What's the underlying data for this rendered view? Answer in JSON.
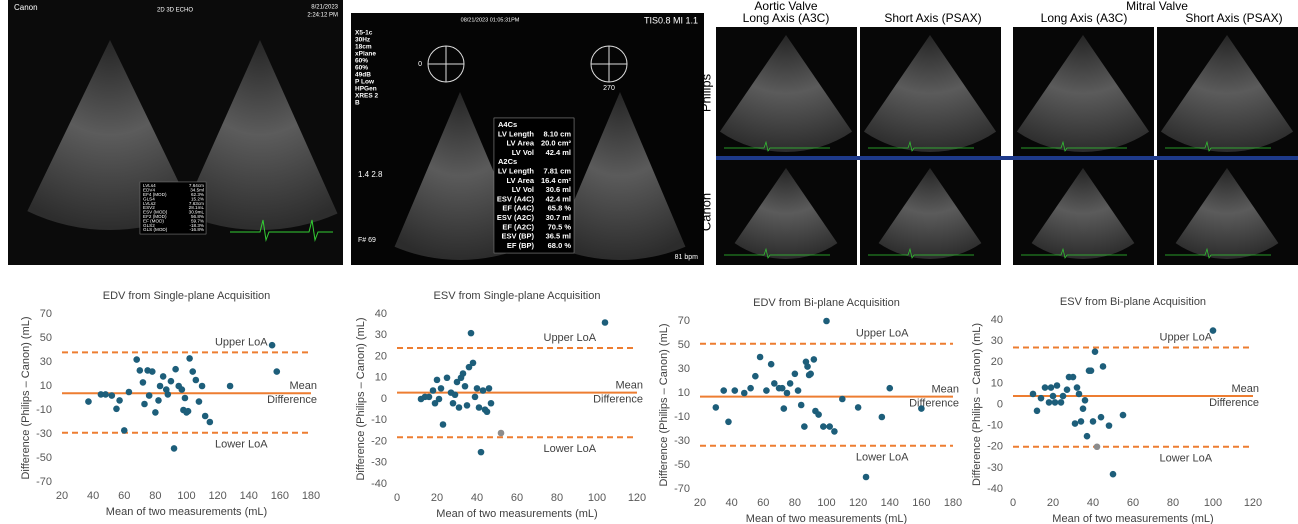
{
  "image_a": {
    "brand": "Canon",
    "mode": "2D 3D ECHO",
    "date": "8/21/2023",
    "time": "2:24:12 PM",
    "measurements": [
      [
        "LVLs4",
        "7.64cm"
      ],
      [
        "EDV4",
        "34.5ml"
      ],
      [
        "EF4 (MOD)",
        "62.3%"
      ],
      [
        "GLS4",
        "15.2%"
      ],
      [
        "LVLs2",
        "7.63cm"
      ],
      [
        "ESV2",
        "28.1mL"
      ],
      [
        "ESV (MOD)",
        "30.9mL"
      ],
      [
        "EF2 (MOD)",
        "56.8%"
      ],
      [
        "EF (MOD)",
        "59.7%"
      ],
      [
        "GLS2",
        "-18.3%"
      ],
      [
        "GLS (MOD)",
        "-16.8%"
      ]
    ]
  },
  "image_b": {
    "datetime": "08/21/2023  01:05:31PM",
    "tis": "TIS0.8   MI 1.1",
    "settings": [
      "X5-1c",
      "30Hz",
      "18cm",
      "xPlane",
      "60%",
      "60%",
      "49dB",
      "P Low",
      "HPGen",
      "XRES 2",
      "B"
    ],
    "angles": [
      "0",
      "270"
    ],
    "scale": "1.4  2.8",
    "frame": "F# 69",
    "heart_rate": "81 bpm",
    "table": [
      [
        "A4Cs"
      ],
      [
        "LV Length",
        "8.10 cm"
      ],
      [
        "LV Area",
        "20.0 cm²"
      ],
      [
        "LV Vol",
        "42.4 ml"
      ],
      [
        "A2Cs"
      ],
      [
        "LV Length",
        "7.81 cm"
      ],
      [
        "LV Area",
        "16.4 cm²"
      ],
      [
        "LV Vol",
        "30.6 ml"
      ],
      [
        "ESV (A4C)",
        "42.4 ml"
      ],
      [
        "EF (A4C)",
        "65.8 %"
      ],
      [
        "ESV (A2C)",
        "30.7 ml"
      ],
      [
        "EF (A2C)",
        "70.5 %"
      ],
      [
        "ESV (BP)",
        "36.5 ml"
      ],
      [
        "EF (BP)",
        "68.0 %"
      ]
    ]
  },
  "image_c": {
    "valves": [
      "Aortic Valve",
      "Mitral Valve"
    ],
    "views": [
      "Long Axis (A3C)",
      "Short Axis (PSAX)",
      "Long Axis (A3C)",
      "Short Axis (PSAX)"
    ],
    "vendors": [
      "Philips",
      "Canon"
    ]
  },
  "chart_data": [
    {
      "type": "scatter",
      "title": "EDV from Single-plane Acquisition",
      "x_label": "Mean of two measurements (mL)",
      "y_label": "Difference (Philips – Canon) (mL)",
      "xlim": [
        20,
        180
      ],
      "xticks": [
        20,
        40,
        60,
        80,
        100,
        120,
        140,
        160,
        180
      ],
      "ylim": [
        -70,
        70
      ],
      "yticks": [
        -70,
        -50,
        -30,
        -10,
        10,
        30,
        50,
        70
      ],
      "series": [
        {
          "color": "#1d5e7a",
          "x": [
            37,
            45,
            48,
            52,
            55,
            57,
            60,
            63,
            68,
            70,
            72,
            73,
            75,
            76,
            78,
            80,
            82,
            83,
            85,
            87,
            88,
            90,
            92,
            93,
            95,
            97,
            98,
            99,
            100,
            101,
            102,
            104,
            106,
            108,
            110,
            112,
            115,
            128,
            155,
            158
          ],
          "values": [
            -3,
            3,
            3,
            2,
            -9,
            -2,
            -27,
            5,
            32,
            23,
            13,
            -5,
            23,
            2,
            22,
            -12,
            -2,
            10,
            18,
            7,
            3,
            14,
            -42,
            24,
            10,
            7,
            -10,
            0,
            -12,
            -11,
            33,
            22,
            15,
            -3,
            10,
            -15,
            -20,
            10,
            44,
            22
          ]
        }
      ],
      "reference_lines": [
        {
          "label": [
            "Upper LoA"
          ],
          "value": 38,
          "dashed": true
        },
        {
          "label": [
            "Mean",
            "Difference"
          ],
          "value": 4,
          "dashed": false
        },
        {
          "label": [
            "Lower LoA"
          ],
          "value": -29,
          "dashed": true
        }
      ],
      "line_color": "#ed7d31"
    },
    {
      "type": "scatter",
      "title": "ESV from Single-plane Acquisition",
      "x_label": "Mean of two measurements (mL)",
      "y_label": "Difference (Philips – Canon) (mL)",
      "xlim": [
        0,
        120
      ],
      "xticks": [
        0,
        20,
        40,
        60,
        80,
        100,
        120
      ],
      "ylim": [
        -40,
        40
      ],
      "yticks": [
        -40,
        -30,
        -20,
        -10,
        0,
        10,
        20,
        30,
        40
      ],
      "series": [
        {
          "color": "#1d5e7a",
          "x": [
            12,
            14,
            16,
            18,
            19,
            20,
            21,
            22,
            23,
            25,
            27,
            28,
            29,
            30,
            31,
            32,
            33,
            34,
            35,
            36,
            37,
            38,
            39,
            40,
            41,
            42,
            43,
            44,
            45,
            46,
            47,
            104
          ],
          "values": [
            0,
            1,
            1,
            4,
            -2,
            9,
            0,
            5,
            -12,
            10,
            3,
            -2,
            2,
            8,
            -4,
            10,
            12,
            6,
            -3,
            15,
            31,
            17,
            1,
            5,
            -4,
            -25,
            4,
            -5,
            -6,
            5,
            -2,
            36
          ]
        },
        {
          "color": "#8c8c8c",
          "x": [
            52
          ],
          "values": [
            -16
          ]
        }
      ],
      "reference_lines": [
        {
          "label": [
            "Upper LoA"
          ],
          "value": 24,
          "dashed": true
        },
        {
          "label": [
            "Mean",
            "Difference"
          ],
          "value": 3,
          "dashed": false
        },
        {
          "label": [
            "Lower LoA"
          ],
          "value": -18,
          "dashed": true
        }
      ],
      "line_color": "#ed7d31"
    },
    {
      "type": "scatter",
      "title": "EDV from Bi-plane Acquisition",
      "x_label": "Mean of two measurements (mL)",
      "y_label": "Difference (Philips – Canon) (mL)",
      "xlim": [
        20,
        180
      ],
      "xticks": [
        20,
        40,
        60,
        80,
        100,
        120,
        140,
        160,
        180
      ],
      "ylim": [
        -70,
        70
      ],
      "yticks": [
        -70,
        -50,
        -30,
        -10,
        10,
        30,
        50,
        70
      ],
      "series": [
        {
          "color": "#1d5e7a",
          "x": [
            30,
            35,
            38,
            42,
            48,
            52,
            55,
            58,
            62,
            65,
            67,
            70,
            72,
            73,
            75,
            77,
            80,
            82,
            84,
            86,
            87,
            88,
            89,
            90,
            92,
            93,
            95,
            98,
            100,
            102,
            105,
            110,
            120,
            125,
            135,
            140,
            160
          ],
          "values": [
            -2,
            12,
            -14,
            12,
            10,
            14,
            24,
            40,
            12,
            34,
            18,
            14,
            14,
            -3,
            10,
            18,
            26,
            12,
            0,
            -18,
            36,
            32,
            25,
            26,
            38,
            -5,
            -8,
            -18,
            70,
            -18,
            -22,
            5,
            -2,
            -60,
            -10,
            14,
            -3
          ]
        }
      ],
      "reference_lines": [
        {
          "label": [
            "Upper LoA"
          ],
          "value": 51,
          "dashed": true
        },
        {
          "label": [
            "Mean",
            "Difference"
          ],
          "value": 7,
          "dashed": false
        },
        {
          "label": [
            "Lower LoA"
          ],
          "value": -34,
          "dashed": true
        }
      ],
      "line_color": "#ed7d31"
    },
    {
      "type": "scatter",
      "title": "ESV from Bi-plane Acquisition",
      "x_label": "Mean of two measurements (mL)",
      "y_label": "Difference (Philips – Canon) (mL)",
      "xlim": [
        0,
        120
      ],
      "xticks": [
        0,
        20,
        40,
        60,
        80,
        100,
        120
      ],
      "ylim": [
        -40,
        40
      ],
      "yticks": [
        -40,
        -30,
        -20,
        -10,
        0,
        10,
        20,
        30,
        40
      ],
      "series": [
        {
          "color": "#1d5e7a",
          "x": [
            10,
            12,
            14,
            16,
            18,
            19,
            20,
            21,
            22,
            24,
            25,
            27,
            28,
            30,
            31,
            32,
            33,
            34,
            35,
            36,
            37,
            38,
            39,
            40,
            41,
            44,
            45,
            48,
            50,
            55,
            100
          ],
          "values": [
            5,
            -3,
            3,
            8,
            1,
            8,
            4,
            1,
            9,
            1,
            4,
            7,
            13,
            13,
            -9,
            8,
            5,
            -8,
            -2,
            2,
            -15,
            16,
            16,
            -8,
            25,
            -6,
            18,
            -10,
            -33,
            -5,
            35
          ]
        },
        {
          "color": "#8c8c8c",
          "x": [
            42
          ],
          "values": [
            -20
          ]
        }
      ],
      "reference_lines": [
        {
          "label": [
            "Upper LoA"
          ],
          "value": 27,
          "dashed": true
        },
        {
          "label": [
            "Mean",
            "Difference"
          ],
          "value": 4,
          "dashed": false
        },
        {
          "label": [
            "Lower LoA"
          ],
          "value": -20,
          "dashed": true
        }
      ],
      "line_color": "#ed7d31"
    }
  ]
}
